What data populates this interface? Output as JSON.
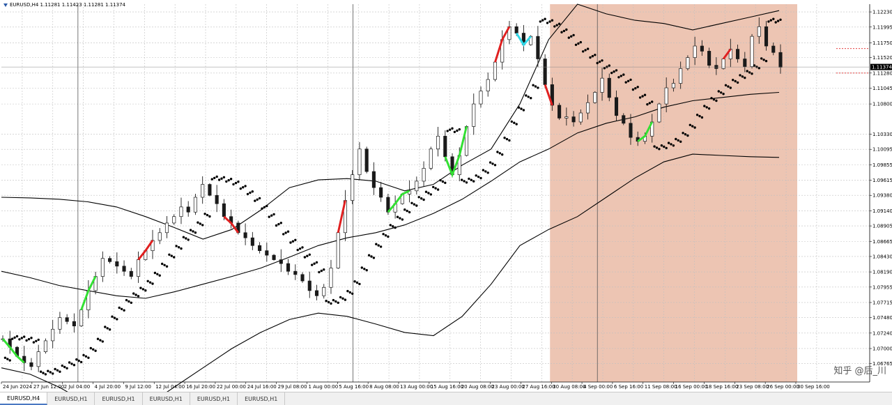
{
  "symbol_info": "EURUSD,H4  1.11281 1.11423 1.11281 1.11374",
  "current_price": "1.11374",
  "watermark": "知乎 @后_川",
  "tabs": [
    {
      "label": "EURUSD,H4",
      "active": true
    },
    {
      "label": "EURUSD,H1",
      "active": false
    },
    {
      "label": "EURUSD,H1",
      "active": false
    },
    {
      "label": "EURUSD,H1",
      "active": false
    },
    {
      "label": "EURUSD,H1",
      "active": false
    },
    {
      "label": "EURUSD,H1",
      "active": false
    }
  ],
  "colors": {
    "background": "#ffffff",
    "grid": "#c0c0c0",
    "highlight": "#e8b7a0",
    "bull_candle": "#1a1a1a",
    "bear_candle": "#1a1a1a",
    "green_segment": "#33e033",
    "red_segment": "#e02020",
    "cyan_segment": "#30d8e8",
    "sar_dots": "#000000",
    "bands": "#000000"
  },
  "chart_data": {
    "type": "line",
    "title": "",
    "instrument": "EURUSD",
    "timeframe": "H4",
    "ylim": [
      1.0648,
      1.1235
    ],
    "y_ticks": [
      "1.12230",
      "1.11995",
      "1.11750",
      "1.11520",
      "1.11280",
      "1.11045",
      "1.10800",
      "1.10330",
      "1.10095",
      "1.09855",
      "1.09615",
      "1.09380",
      "1.09140",
      "1.08905",
      "1.08665",
      "1.08430",
      "1.08190",
      "1.07955",
      "1.07715",
      "1.07480",
      "1.07240",
      "1.07000",
      "1.06765"
    ],
    "x_ticks": [
      "24 Jun 2024",
      "27 Jun 12:00",
      "2 Jul 04:00",
      "4 Jul 20:00",
      "9 Jul 12:00",
      "12 Jul 04:00",
      "16 Jul 20:00",
      "22 Jul 00:00",
      "24 Jul 16:00",
      "29 Jul 08:00",
      "1 Aug 00:00",
      "5 Aug 16:00",
      "8 Aug 08:00",
      "13 Aug 00:00",
      "15 Aug 16:00",
      "20 Aug 08:00",
      "23 Aug 00:00",
      "27 Aug 16:00",
      "30 Aug 08:00",
      "4 Sep 00:00",
      "6 Sep 16:00",
      "11 Sep 08:00",
      "16 Sep 00:00",
      "18 Sep 16:00",
      "23 Sep 08:00",
      "26 Sep 00:00",
      "30 Sep 16:00"
    ],
    "highlight_range": [
      "30 Aug 08:00",
      "30 Sep 16:00"
    ],
    "close_series": [
      1.0715,
      1.0702,
      1.0688,
      1.0678,
      1.0672,
      1.0695,
      1.0712,
      1.073,
      1.0748,
      1.0742,
      1.0735,
      1.076,
      1.079,
      1.0812,
      1.084,
      1.0835,
      1.0828,
      1.082,
      1.0812,
      1.0838,
      1.0852,
      1.0868,
      1.088,
      1.0895,
      1.0905,
      1.092,
      1.0912,
      1.0935,
      1.0955,
      1.0938,
      1.0925,
      1.0905,
      1.0895,
      1.088,
      1.0872,
      1.086,
      1.0852,
      1.0845,
      1.0838,
      1.0832,
      1.082,
      1.0815,
      1.0805,
      1.079,
      1.0782,
      1.0795,
      1.0825,
      1.088,
      1.093,
      1.097,
      1.101,
      1.0975,
      1.095,
      1.0935,
      1.0912,
      1.0925,
      1.094,
      1.0945,
      1.096,
      1.098,
      1.101,
      1.103,
      1.0998,
      1.097,
      1.1,
      1.1045,
      1.108,
      1.11,
      1.1118,
      1.1145,
      1.118,
      1.12,
      1.119,
      1.1172,
      1.1185,
      1.115,
      1.111,
      1.1078,
      1.1058,
      1.106,
      1.1052,
      1.1066,
      1.1082,
      1.1098,
      1.112,
      1.109,
      1.1062,
      1.105,
      1.1028,
      1.1022,
      1.103,
      1.1052,
      1.108,
      1.1105,
      1.1112,
      1.1135,
      1.1152,
      1.117,
      1.1162,
      1.114,
      1.1135,
      1.115,
      1.1165,
      1.115,
      1.1138,
      1.1185,
      1.12,
      1.117,
      1.116,
      1.1137
    ],
    "series": [
      {
        "values_upper_band": [
          1.0935,
          1.0934,
          1.0932,
          1.0928,
          1.092,
          1.0905,
          1.0888,
          1.087,
          1.0885,
          1.0915,
          1.095,
          1.0962,
          1.0964,
          1.096,
          1.0945,
          1.0955,
          1.0985,
          1.101,
          1.108,
          1.118,
          1.1235,
          1.122,
          1.121,
          1.1205,
          1.1195,
          1.1205,
          1.1215,
          1.1225
        ]
      },
      {
        "values_middle_band": [
          1.082,
          1.081,
          1.0798,
          1.079,
          1.0782,
          1.0778,
          1.0788,
          1.08,
          1.0812,
          1.0825,
          1.0842,
          1.086,
          1.0872,
          1.088,
          1.0892,
          1.091,
          1.0932,
          1.096,
          1.099,
          1.101,
          1.1035,
          1.105,
          1.106,
          1.1075,
          1.1085,
          1.109,
          1.1095,
          1.1098
        ]
      },
      {
        "values_lower_band": [
          1.067,
          1.066,
          1.064,
          1.0615,
          1.0595,
          1.061,
          1.064,
          1.067,
          1.07,
          1.0725,
          1.0745,
          1.0755,
          1.075,
          1.0738,
          1.0725,
          1.072,
          1.075,
          1.08,
          1.086,
          1.0885,
          1.0905,
          1.0935,
          1.0965,
          1.099,
          1.1002,
          1.1,
          1.0998,
          1.0997
        ]
      }
    ]
  }
}
